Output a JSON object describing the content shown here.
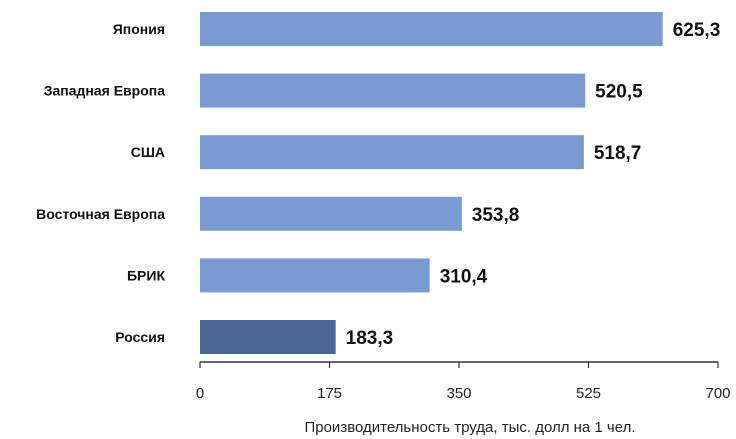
{
  "chart_data": {
    "type": "bar",
    "orientation": "horizontal",
    "categories": [
      "Япония",
      "Западная Европа",
      "США",
      "Восточная Европа",
      "БРИК",
      "Россия"
    ],
    "values": [
      625.3,
      520.5,
      518.7,
      353.8,
      310.4,
      183.3
    ],
    "value_labels": [
      "625,3",
      "520,5",
      "518,7",
      "353,8",
      "310,4",
      "183,3"
    ],
    "xlabel": "Производительность труда, тыс. долл на 1 чел.",
    "xlim": [
      0,
      700
    ],
    "xticks": [
      0,
      175,
      350,
      525,
      700
    ],
    "xtick_labels": [
      "0",
      "175",
      "350",
      "525",
      "700"
    ],
    "grid": false,
    "colors": {
      "bar": "#7b9bd0",
      "highlight": "#4a6794",
      "highlight_category": "Россия",
      "axis": "#333333"
    }
  }
}
